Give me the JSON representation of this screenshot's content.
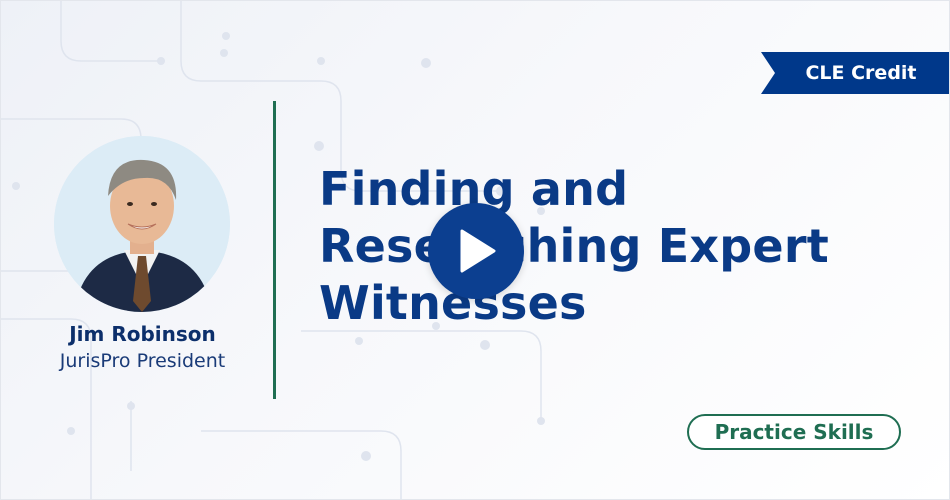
{
  "badge": {
    "label": "CLE Credit"
  },
  "speaker": {
    "name": "Jim Robinson",
    "role": "JurisPro President"
  },
  "course": {
    "title_lines": [
      "Finding and",
      "Researching Expert",
      "Witnesses"
    ]
  },
  "category": {
    "label": "Practice Skills"
  },
  "colors": {
    "navy": "#00388a",
    "title": "#0a3a86",
    "green": "#1f6e52"
  },
  "icons": {
    "play": "play-icon"
  }
}
